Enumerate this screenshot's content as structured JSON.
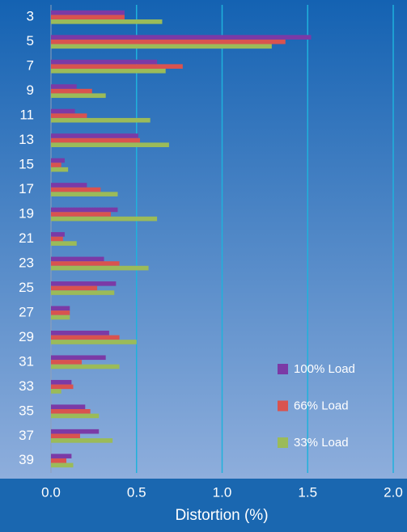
{
  "chart_data": {
    "type": "hbar",
    "x_label": "Distortion (%)",
    "categories": [
      "3",
      "5",
      "7",
      "9",
      "11",
      "13",
      "15",
      "17",
      "19",
      "21",
      "23",
      "25",
      "27",
      "29",
      "31",
      "33",
      "35",
      "37",
      "39"
    ],
    "series": [
      {
        "name": "100% Load",
        "color": "#7b3aa6",
        "values": [
          0.43,
          1.52,
          0.62,
          0.15,
          0.14,
          0.51,
          0.08,
          0.21,
          0.39,
          0.08,
          0.31,
          0.38,
          0.11,
          0.34,
          0.32,
          0.12,
          0.2,
          0.28,
          0.12
        ]
      },
      {
        "name": "66% Load",
        "color": "#d9534f",
        "values": [
          0.43,
          1.37,
          0.77,
          0.24,
          0.21,
          0.52,
          0.06,
          0.29,
          0.35,
          0.07,
          0.4,
          0.27,
          0.11,
          0.4,
          0.18,
          0.13,
          0.23,
          0.17,
          0.09
        ]
      },
      {
        "name": "33% Load",
        "color": "#9bbb59",
        "values": [
          0.65,
          1.29,
          0.67,
          0.32,
          0.58,
          0.69,
          0.1,
          0.39,
          0.62,
          0.15,
          0.57,
          0.37,
          0.11,
          0.5,
          0.4,
          0.06,
          0.28,
          0.36,
          0.13
        ]
      }
    ],
    "xlim": [
      0,
      2
    ],
    "xticks": [
      {
        "value": 0,
        "label": "0.0"
      },
      0.5,
      {
        "value": 1,
        "label": "1.0"
      },
      1.5,
      {
        "value": 2,
        "label": "2.0"
      }
    ],
    "grid": true,
    "legend": "lower right"
  }
}
